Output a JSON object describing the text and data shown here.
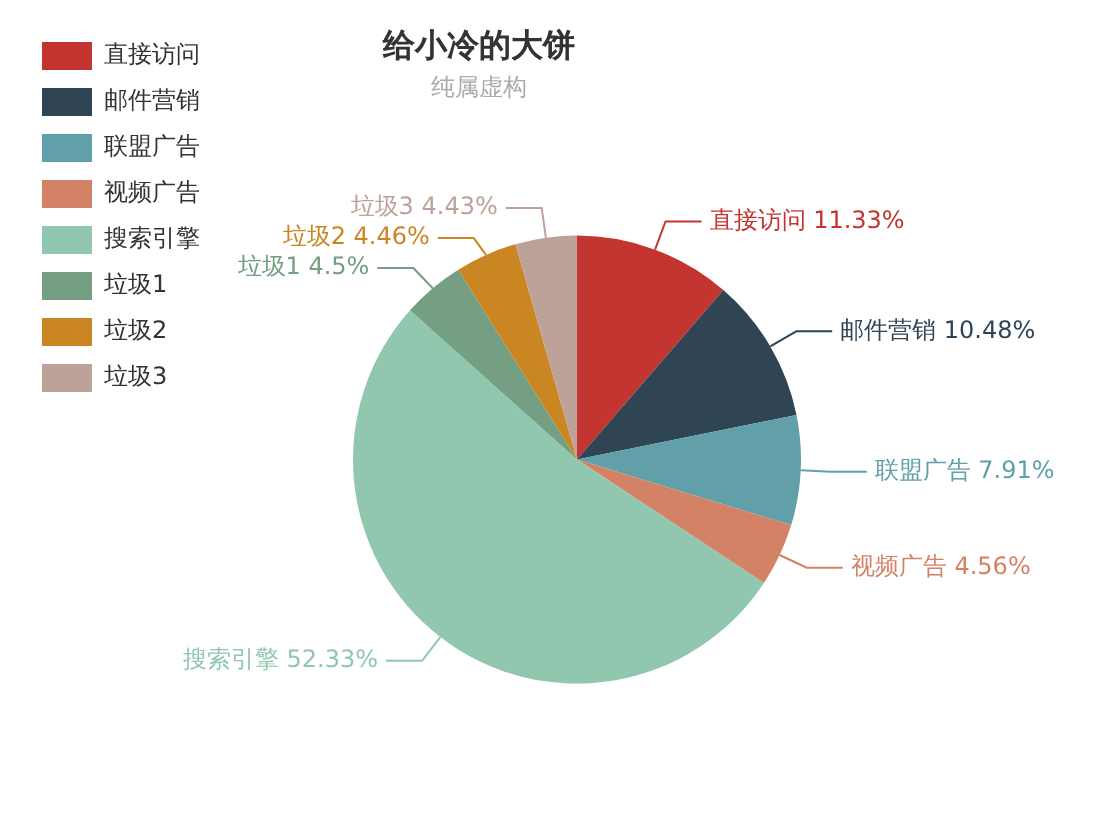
{
  "chart_data": {
    "type": "pie",
    "title": "给小冷的大饼",
    "subtitle": "纯属虚构",
    "categories": [
      "直接访问",
      "邮件营销",
      "联盟广告",
      "视频广告",
      "搜索引擎",
      "垃圾1",
      "垃圾2",
      "垃圾3"
    ],
    "values": [
      11.33,
      10.48,
      7.91,
      4.56,
      52.33,
      4.5,
      4.46,
      4.43
    ],
    "value_labels": [
      "11.33%",
      "10.48%",
      "7.91%",
      "4.56%",
      "52.33%",
      "4.5%",
      "4.46%",
      "4.43%"
    ],
    "colors": [
      "#c23531",
      "#2f4554",
      "#61a0a8",
      "#d48265",
      "#91c7ae",
      "#749f83",
      "#ca8622",
      "#bda29a"
    ],
    "legend": "top left"
  }
}
